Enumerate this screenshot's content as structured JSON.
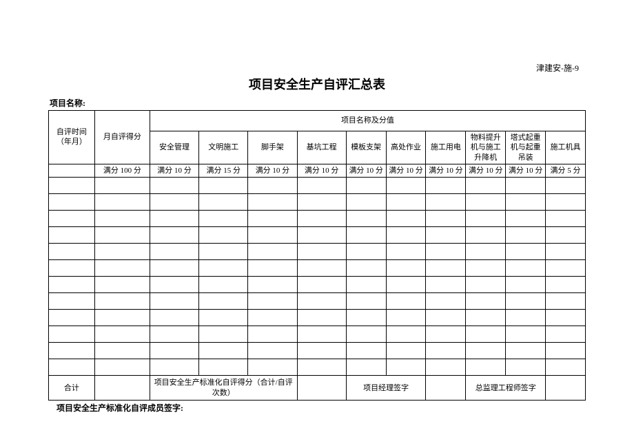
{
  "doc_code": "津建安-施-9",
  "title": "项目安全生产自评汇总表",
  "project_label": "项目名称:",
  "header": {
    "time": "自评时间（年月）",
    "month_score": "月自评得分",
    "group": "项目名称及分值",
    "cols": [
      "安全管理",
      "文明施工",
      "脚手架",
      "基坑工程",
      "模板支架",
      "高处作业",
      "施工用电",
      "物料提升机与施工升降机",
      "塔式起重机与起重吊装",
      "施工机具"
    ],
    "full_month": "满分 100 分",
    "full_scores": [
      "满分 10 分",
      "满分 15 分",
      "满分 10 分",
      "满分 10 分",
      "满分 10 分",
      "满分 10 分",
      "满分 10 分",
      "满分 10 分",
      "满分 10 分",
      "满分 5 分"
    ]
  },
  "footer": {
    "total": "合计",
    "std_score": "项目安全生产标准化自评得分（合计/自评次数）",
    "pm_sign": "项目经理签字",
    "supervisor_sign": "总监理工程师签字"
  },
  "signers": "项目安全生产标准化自评成员签字:",
  "num_empty_rows": 12
}
